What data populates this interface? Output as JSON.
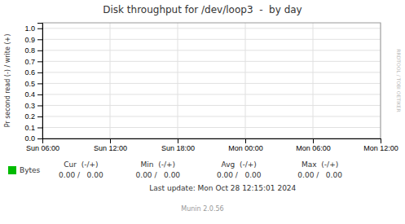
{
  "chart_data": {
    "type": "line",
    "title": "Disk throughput for /dev/loop3  -  by day",
    "y_label": "Pr second read (-) / write (+)",
    "categories": [
      "Sun 06:00",
      "Sun 12:00",
      "Sun 18:00",
      "Mon 00:00",
      "Mon 06:00",
      "Mon 12:00"
    ],
    "series": [
      {
        "name": "Bytes",
        "color": "#00bb00",
        "values": [
          null,
          null,
          null,
          null,
          null,
          null
        ]
      }
    ],
    "ylim": [
      0.0,
      1.05
    ],
    "yticks": [
      {
        "value": 0.0,
        "label": "0.0"
      },
      0.1,
      0.2,
      0.3,
      0.4,
      0.5,
      0.6,
      0.7,
      0.8,
      0.9,
      {
        "value": 1.0,
        "label": "1.0"
      }
    ],
    "grid": true,
    "legend": "bottom",
    "annotations": [
      "Cur  (-/+)",
      "0.00 /   0.00",
      "Min  (-/+)",
      "0.00 /   0.00",
      "Avg  (-/+)",
      "0.00 /   0.00",
      "Max  (-/+)",
      "0.00 /   0.00",
      "Last update: Mon Oct 28 12:15:01 2024",
      "Munin 2.0.56",
      "RRDTOOL / TOBI OETIKER"
    ]
  }
}
